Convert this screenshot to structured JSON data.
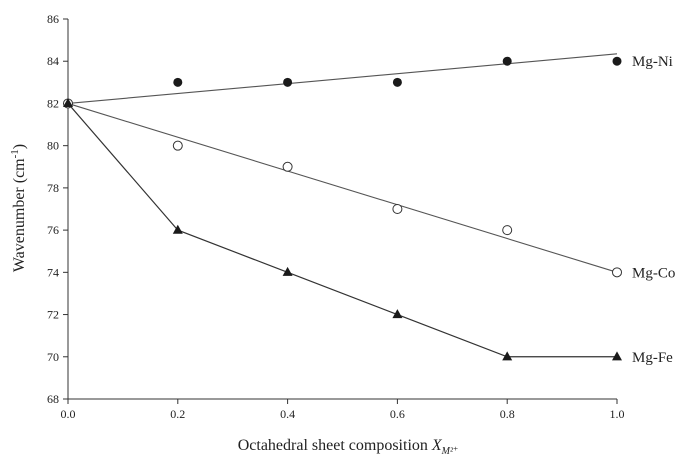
{
  "chart_data": {
    "type": "scatter",
    "title": "",
    "xlabel": "Octahedral sheet composition",
    "xlabel_symbol": "X",
    "xlabel_sub": "M²⁺",
    "ylabel": "Wavenumber (cm",
    "ylabel_sup": "-1",
    "ylabel_close": ")",
    "xlim": [
      0.0,
      1.0
    ],
    "ylim": [
      68,
      86
    ],
    "x_ticks": [
      "0.0",
      "0.2",
      "0.4",
      "0.6",
      "0.8",
      "1.0"
    ],
    "y_ticks": [
      "68",
      "70",
      "72",
      "74",
      "76",
      "78",
      "80",
      "82",
      "84",
      "86"
    ],
    "grid": false,
    "legend": "labels at right end of each series",
    "series": [
      {
        "name": "Mg-Ni",
        "marker": "filled-circle",
        "x": [
          0.0,
          0.2,
          0.4,
          0.6,
          0.8,
          1.0
        ],
        "y": [
          82,
          83,
          83,
          83,
          84,
          84
        ],
        "fit_line": [
          [
            0.0,
            82.0
          ],
          [
            1.0,
            84.35
          ]
        ]
      },
      {
        "name": "Mg-Co",
        "marker": "open-circle",
        "x": [
          0.0,
          0.2,
          0.4,
          0.6,
          0.8,
          1.0
        ],
        "y": [
          82,
          80,
          79,
          77,
          76,
          74
        ],
        "fit_line": [
          [
            0.0,
            82.0
          ],
          [
            1.0,
            74.0
          ]
        ]
      },
      {
        "name": "Mg-Fe",
        "marker": "filled-triangle",
        "x": [
          0.0,
          0.2,
          0.4,
          0.6,
          0.8,
          1.0
        ],
        "y": [
          82,
          76,
          74,
          72,
          70,
          70
        ],
        "connect_points": true
      }
    ]
  }
}
